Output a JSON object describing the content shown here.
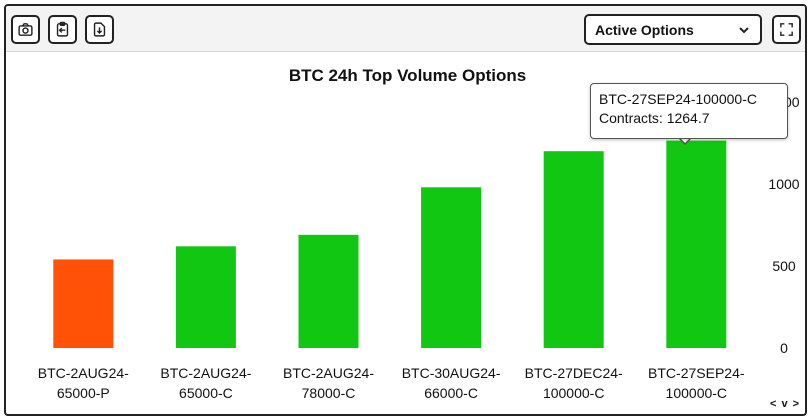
{
  "toolbar": {
    "icons": [
      "camera-icon",
      "clipboard-import-icon",
      "download-icon",
      "fullscreen-icon"
    ],
    "select_value": "Active Options"
  },
  "tooltip": {
    "title": "BTC-27SEP24-100000-C",
    "line": "Contracts: 1264.7"
  },
  "nav": {
    "label": "< v >"
  },
  "chart_data": {
    "type": "bar",
    "title": "BTC 24h Top Volume Options",
    "categories": [
      [
        "BTC-2AUG24-",
        "65000-P"
      ],
      [
        "BTC-2AUG24-",
        "65000-C"
      ],
      [
        "BTC-2AUG24-",
        "78000-C"
      ],
      [
        "BTC-30AUG24-",
        "66000-C"
      ],
      [
        "BTC-27DEC24-",
        "100000-C"
      ],
      [
        "BTC-27SEP24-",
        "100000-C"
      ]
    ],
    "values": [
      540,
      620,
      690,
      980,
      1200,
      1264.7
    ],
    "colors": [
      "#ff5207",
      "#12c712",
      "#12c712",
      "#12c712",
      "#12c712",
      "#12c712"
    ],
    "y_ticks": [
      0,
      500,
      1000,
      1500
    ],
    "ylim": [
      0,
      1500
    ],
    "y_axis_side": "right",
    "grid": false,
    "highlighted_index": 5
  }
}
